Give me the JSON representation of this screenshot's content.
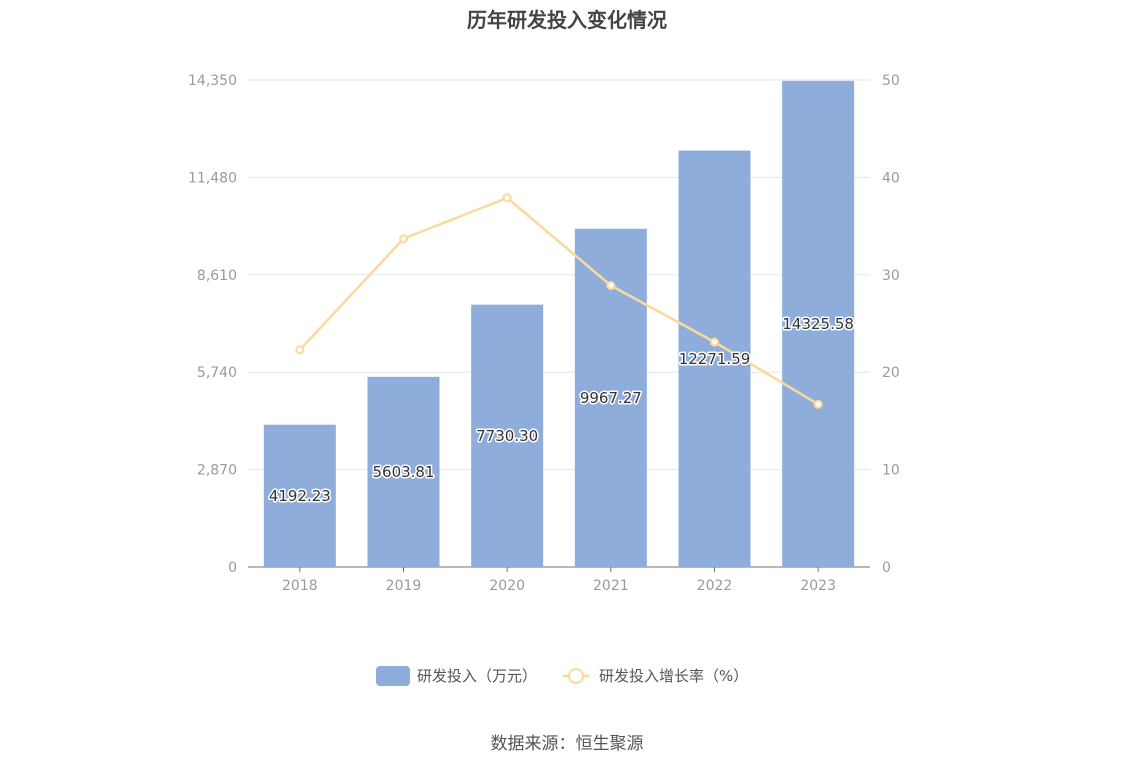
{
  "title": "历年研发投入变化情况",
  "source": "数据来源：恒生聚源",
  "colors": {
    "bar": "#8eaddb",
    "line": "#fbd99a",
    "grid": "#e3e6f0",
    "axis": "#6e7079"
  },
  "chart_data": {
    "type": "bar",
    "categories": [
      "2018",
      "2019",
      "2020",
      "2021",
      "2022",
      "2023"
    ],
    "series": [
      {
        "name": "研发投入（万元）",
        "type": "bar",
        "axis": "left",
        "values": [
          4192.23,
          5603.81,
          7730.3,
          9967.27,
          12271.59,
          14325.58
        ],
        "labels": [
          "4192.23",
          "5603.81",
          "7730.30",
          "9967.27",
          "12271.59",
          "14325.58"
        ]
      },
      {
        "name": "研发投入增长率（%）",
        "type": "line",
        "axis": "right",
        "values": [
          22.3,
          33.7,
          37.9,
          28.9,
          23.1,
          16.7
        ]
      }
    ],
    "y_left": {
      "min": 0,
      "max": 14350,
      "ticks": [
        "0",
        "2,870",
        "5,740",
        "8,610",
        "11,480",
        "14,350"
      ]
    },
    "y_right": {
      "min": 0,
      "max": 50,
      "ticks": [
        "0",
        "10",
        "20",
        "30",
        "40",
        "50"
      ]
    },
    "grid": true,
    "legend_position": "bottom"
  }
}
